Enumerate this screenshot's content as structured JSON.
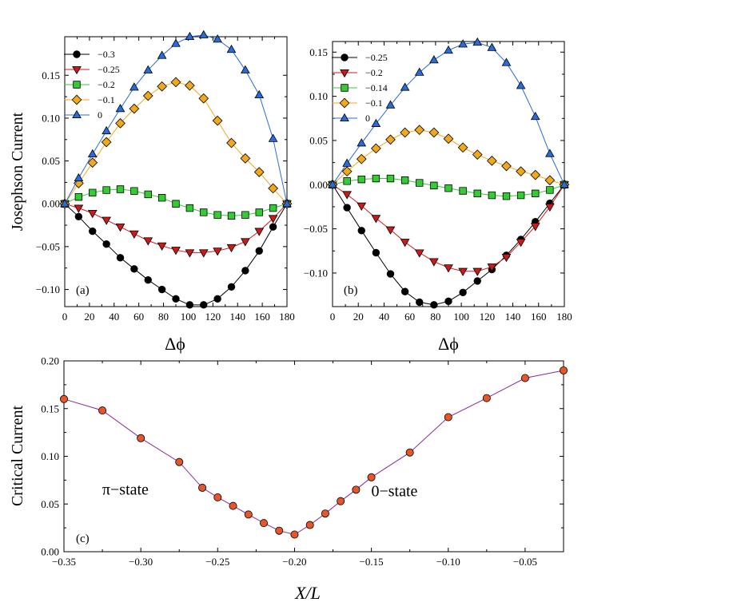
{
  "chart_data": [
    {
      "type": "line",
      "panel_label": "(a)",
      "xlabel": "Δϕ",
      "ylabel": "Josephson Current",
      "xlim": [
        0,
        180
      ],
      "ylim": [
        -0.12,
        0.195
      ],
      "xticks": [
        0,
        20,
        40,
        60,
        80,
        100,
        120,
        140,
        160,
        180
      ],
      "yticks": [
        -0.1,
        -0.05,
        0.0,
        0.05,
        0.1,
        0.15
      ],
      "ytick_labels": [
        "−0.10",
        "−0.05",
        "0.00",
        "0.05",
        "0.10",
        "0.15"
      ],
      "legend_position": "top-left",
      "series": [
        {
          "name": "−0.3",
          "marker": "circle",
          "color": "#000000",
          "x": [
            0,
            11.25,
            22.5,
            33.75,
            45,
            56.25,
            67.5,
            78.75,
            90,
            101.25,
            112.5,
            123.75,
            135,
            146.25,
            157.5,
            168.75,
            180
          ],
          "y": [
            0,
            -0.015,
            -0.032,
            -0.047,
            -0.063,
            -0.076,
            -0.089,
            -0.1,
            -0.111,
            -0.118,
            -0.118,
            -0.111,
            -0.097,
            -0.078,
            -0.055,
            -0.027,
            0
          ]
        },
        {
          "name": "−0.25",
          "marker": "triangle-down",
          "color": "#cc1a1a",
          "x": [
            0,
            11.25,
            22.5,
            33.75,
            45,
            56.25,
            67.5,
            78.75,
            90,
            101.25,
            112.5,
            123.75,
            135,
            146.25,
            157.5,
            168.75,
            180
          ],
          "y": [
            0,
            -0.005,
            -0.011,
            -0.019,
            -0.027,
            -0.035,
            -0.043,
            -0.049,
            -0.054,
            -0.057,
            -0.057,
            -0.055,
            -0.051,
            -0.044,
            -0.032,
            -0.017,
            0
          ]
        },
        {
          "name": "−0.2",
          "marker": "square",
          "color": "#33cc33",
          "x": [
            0,
            11.25,
            22.5,
            33.75,
            45,
            56.25,
            67.5,
            78.75,
            90,
            101.25,
            112.5,
            123.75,
            135,
            146.25,
            157.5,
            168.75,
            180
          ],
          "y": [
            0,
            0.008,
            0.013,
            0.016,
            0.017,
            0.015,
            0.011,
            0.007,
            0.0,
            -0.005,
            -0.01,
            -0.013,
            -0.014,
            -0.013,
            -0.01,
            -0.005,
            0
          ]
        },
        {
          "name": "−0.1",
          "marker": "diamond",
          "color": "#f2a81d",
          "x": [
            0,
            11.25,
            22.5,
            33.75,
            45,
            56.25,
            67.5,
            78.75,
            90,
            101.25,
            112.5,
            123.75,
            135,
            146.25,
            157.5,
            168.75,
            180
          ],
          "y": [
            0,
            0.024,
            0.048,
            0.072,
            0.094,
            0.111,
            0.126,
            0.137,
            0.142,
            0.138,
            0.123,
            0.097,
            0.071,
            0.053,
            0.037,
            0.018,
            0
          ]
        },
        {
          "name": "0",
          "marker": "triangle-up",
          "color": "#2a6bdc",
          "x": [
            0,
            11.25,
            22.5,
            33.75,
            45,
            56.25,
            67.5,
            78.75,
            90,
            101.25,
            112.5,
            123.75,
            135,
            146.25,
            157.5,
            168.75,
            180
          ],
          "y": [
            0,
            0.03,
            0.058,
            0.085,
            0.111,
            0.136,
            0.156,
            0.173,
            0.187,
            0.195,
            0.197,
            0.192,
            0.18,
            0.156,
            0.127,
            0.076,
            0
          ]
        }
      ]
    },
    {
      "type": "line",
      "panel_label": "(b)",
      "xlabel": "Δϕ",
      "ylabel": "",
      "xlim": [
        0,
        180
      ],
      "ylim": [
        -0.138,
        0.162
      ],
      "xticks": [
        0,
        20,
        40,
        60,
        80,
        100,
        120,
        140,
        160,
        180
      ],
      "yticks": [
        -0.1,
        -0.05,
        0.0,
        0.05,
        0.1,
        0.15
      ],
      "ytick_labels": [
        "−0.10",
        "−0.05",
        "0.00",
        "0.05",
        "0.10",
        "0.15"
      ],
      "legend_position": "top-left",
      "series": [
        {
          "name": "−0.25",
          "marker": "circle",
          "color": "#000000",
          "x": [
            0,
            11.25,
            22.5,
            33.75,
            45,
            56.25,
            67.5,
            78.75,
            90,
            101.25,
            112.5,
            123.75,
            135,
            146.25,
            157.5,
            168.75,
            180
          ],
          "y": [
            0,
            -0.026,
            -0.052,
            -0.077,
            -0.101,
            -0.121,
            -0.133,
            -0.136,
            -0.132,
            -0.122,
            -0.109,
            -0.096,
            -0.08,
            -0.062,
            -0.042,
            -0.021,
            0
          ]
        },
        {
          "name": "−0.2",
          "marker": "triangle-down",
          "color": "#cc1a1a",
          "x": [
            0,
            11.25,
            22.5,
            33.75,
            45,
            56.25,
            67.5,
            78.75,
            90,
            101.25,
            112.5,
            123.75,
            135,
            146.25,
            157.5,
            168.75,
            180
          ],
          "y": [
            0,
            -0.011,
            -0.024,
            -0.038,
            -0.051,
            -0.065,
            -0.077,
            -0.087,
            -0.094,
            -0.098,
            -0.098,
            -0.093,
            -0.082,
            -0.065,
            -0.047,
            -0.025,
            0
          ]
        },
        {
          "name": "−0.14",
          "marker": "square",
          "color": "#33cc33",
          "x": [
            0,
            11.25,
            22.5,
            33.75,
            45,
            56.25,
            67.5,
            78.75,
            90,
            101.25,
            112.5,
            123.75,
            135,
            146.25,
            157.5,
            168.75,
            180
          ],
          "y": [
            0,
            0.004,
            0.006,
            0.007,
            0.007,
            0.005,
            0.002,
            -0.001,
            -0.004,
            -0.007,
            -0.01,
            -0.012,
            -0.013,
            -0.012,
            -0.01,
            -0.006,
            0
          ]
        },
        {
          "name": "−0.1",
          "marker": "diamond",
          "color": "#f2a81d",
          "x": [
            0,
            11.25,
            22.5,
            33.75,
            45,
            56.25,
            67.5,
            78.75,
            90,
            101.25,
            112.5,
            123.75,
            135,
            146.25,
            157.5,
            168.75,
            180
          ],
          "y": [
            0,
            0.015,
            0.029,
            0.041,
            0.051,
            0.059,
            0.062,
            0.059,
            0.052,
            0.042,
            0.034,
            0.027,
            0.021,
            0.015,
            0.011,
            0.005,
            0
          ]
        },
        {
          "name": "0",
          "marker": "triangle-up",
          "color": "#2a6bdc",
          "x": [
            0,
            11.25,
            22.5,
            33.75,
            45,
            56.25,
            67.5,
            78.75,
            90,
            101.25,
            112.5,
            123.75,
            135,
            146.25,
            157.5,
            168.75,
            180
          ],
          "y": [
            0,
            0.024,
            0.047,
            0.069,
            0.09,
            0.11,
            0.127,
            0.141,
            0.152,
            0.159,
            0.161,
            0.155,
            0.138,
            0.112,
            0.077,
            0.035,
            0
          ]
        }
      ]
    },
    {
      "type": "line",
      "panel_label": "(c)",
      "xlabel": "X/L",
      "ylabel": "Critical Current",
      "xlim": [
        -0.35,
        -0.025
      ],
      "ylim": [
        0,
        0.2
      ],
      "xticks": [
        -0.35,
        -0.3,
        -0.25,
        -0.2,
        -0.15,
        -0.1,
        -0.05
      ],
      "xtick_labels": [
        "−0.35",
        "−0.30",
        "−0.25",
        "−0.20",
        "−0.15",
        "−0.10",
        "−0.05"
      ],
      "yticks": [
        0,
        0.05,
        0.1,
        0.15,
        0.2
      ],
      "ytick_labels": [
        "0.00",
        "0.05",
        "0.10",
        "0.15",
        "0.20"
      ],
      "annotations": [
        {
          "text": "π−state",
          "x": -0.31,
          "y": 0.06
        },
        {
          "text": "0−state",
          "x": -0.135,
          "y": 0.058
        }
      ],
      "series": [
        {
          "name": "critical current",
          "marker": "circle",
          "color": "#e8552a",
          "line_color": "#8a2a9c",
          "x": [
            -0.35,
            -0.325,
            -0.3,
            -0.275,
            -0.26,
            -0.25,
            -0.24,
            -0.23,
            -0.22,
            -0.21,
            -0.2,
            -0.19,
            -0.18,
            -0.17,
            -0.16,
            -0.15,
            -0.125,
            -0.1,
            -0.075,
            -0.05,
            -0.025
          ],
          "y": [
            0.16,
            0.148,
            0.119,
            0.094,
            0.067,
            0.057,
            0.048,
            0.039,
            0.03,
            0.022,
            0.018,
            0.028,
            0.04,
            0.053,
            0.065,
            0.078,
            0.104,
            0.141,
            0.161,
            0.182,
            0.19
          ]
        }
      ]
    }
  ]
}
